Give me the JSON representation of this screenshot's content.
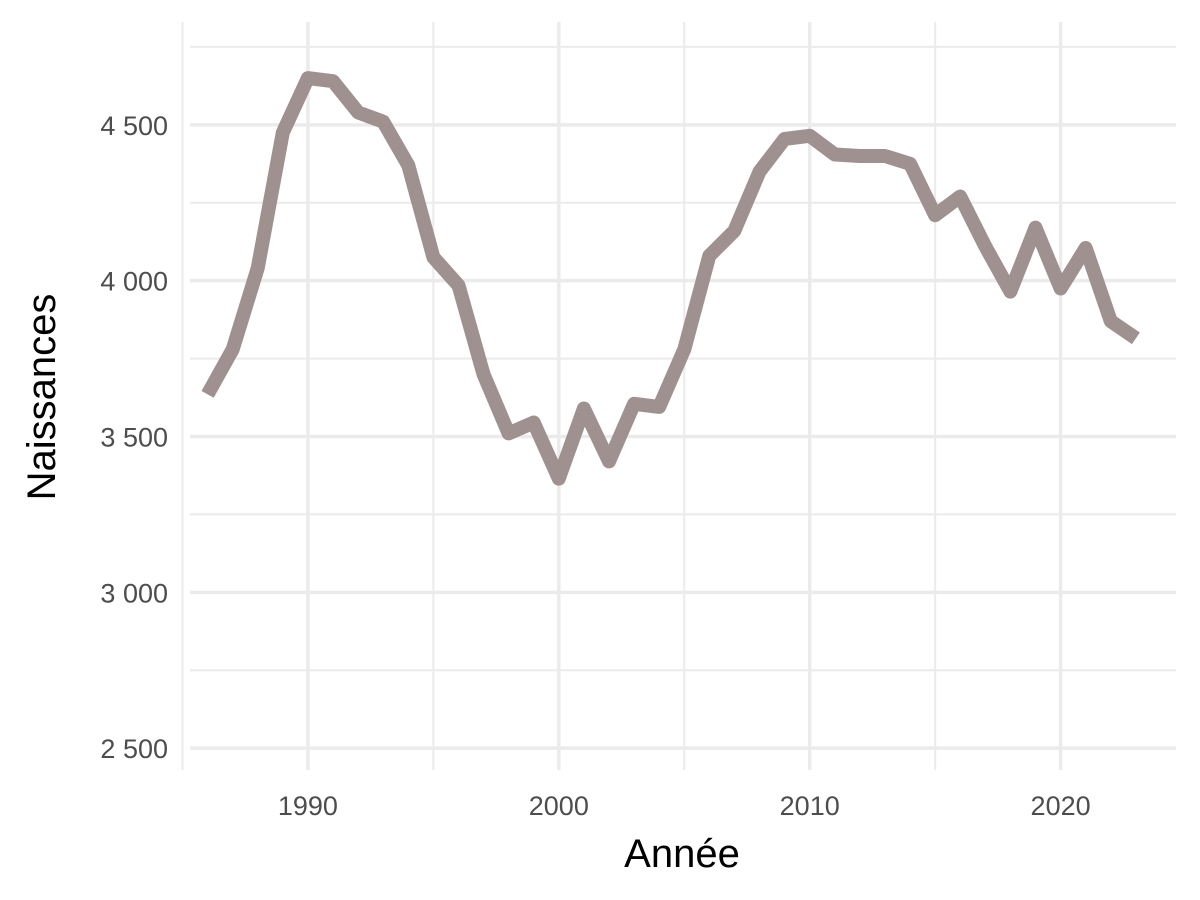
{
  "chart_data": {
    "type": "line",
    "xlabel": "Année",
    "ylabel": "Naissances",
    "xlim": [
      1985.3,
      2024.6
    ],
    "ylim": [
      2430,
      4830
    ],
    "x_ticks": [
      1990,
      2000,
      2010,
      2020
    ],
    "x_tick_labels": [
      "1990",
      "2000",
      "2010",
      "2020"
    ],
    "x_minor_ticks": [
      1985,
      1995,
      2005,
      2015
    ],
    "y_ticks": [
      2500,
      3000,
      3500,
      4000,
      4500
    ],
    "y_tick_labels": [
      "2 500",
      "3 000",
      "3 500",
      "4 000",
      "4 500"
    ],
    "y_minor_ticks": [
      2750,
      3250,
      3750,
      4250,
      4750
    ],
    "grid": true,
    "line_color": "#a09191",
    "series": [
      {
        "x": [
          1986,
          1987,
          1988,
          1989,
          1990,
          1991,
          1992,
          1993,
          1994,
          1995,
          1996,
          1997,
          1998,
          1999,
          2000,
          2001,
          2002,
          2003,
          2004,
          2005,
          2006,
          2007,
          2008,
          2009,
          2010,
          2011,
          2012,
          2013,
          2014,
          2015,
          2016,
          2017,
          2018,
          2019,
          2020,
          2021,
          2022,
          2023
        ],
        "values": [
          3635,
          3780,
          4040,
          4475,
          4650,
          4640,
          4540,
          4510,
          4370,
          4075,
          3985,
          3700,
          3510,
          3545,
          3365,
          3590,
          3420,
          3605,
          3595,
          3780,
          4080,
          4160,
          4350,
          4455,
          4465,
          4405,
          4400,
          4400,
          4375,
          4210,
          4270,
          4110,
          3965,
          4170,
          3975,
          4105,
          3870,
          3815
        ]
      }
    ]
  }
}
